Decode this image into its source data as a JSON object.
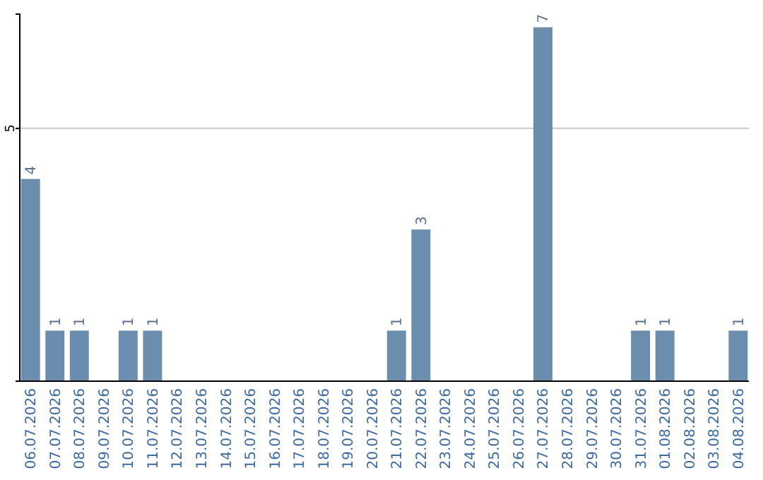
{
  "chart_data": {
    "type": "bar",
    "categories": [
      "06.07.2026",
      "07.07.2026",
      "08.07.2026",
      "09.07.2026",
      "10.07.2026",
      "11.07.2026",
      "12.07.2026",
      "13.07.2026",
      "14.07.2026",
      "15.07.2026",
      "16.07.2026",
      "17.07.2026",
      "18.07.2026",
      "19.07.2026",
      "20.07.2026",
      "21.07.2026",
      "22.07.2026",
      "23.07.2026",
      "24.07.2026",
      "25.07.2026",
      "26.07.2026",
      "27.07.2026",
      "28.07.2026",
      "29.07.2026",
      "30.07.2026",
      "31.07.2026",
      "01.08.2026",
      "02.08.2026",
      "03.08.2026",
      "04.08.2026"
    ],
    "values": [
      4,
      1,
      1,
      0,
      1,
      1,
      0,
      0,
      0,
      0,
      0,
      0,
      0,
      0,
      0,
      1,
      3,
      0,
      0,
      0,
      0,
      7,
      0,
      0,
      0,
      1,
      1,
      0,
      0,
      1
    ],
    "value_labels": [
      "4",
      "1",
      "1",
      null,
      "1",
      "1",
      null,
      null,
      null,
      null,
      null,
      null,
      null,
      null,
      null,
      "1",
      "3",
      null,
      null,
      null,
      null,
      "7",
      null,
      null,
      null,
      "1",
      "1",
      null,
      null,
      "1"
    ],
    "color": "#6c8eae",
    "ylim": [
      0,
      7.26
    ],
    "yticks": [
      5
    ],
    "grid": "y"
  }
}
